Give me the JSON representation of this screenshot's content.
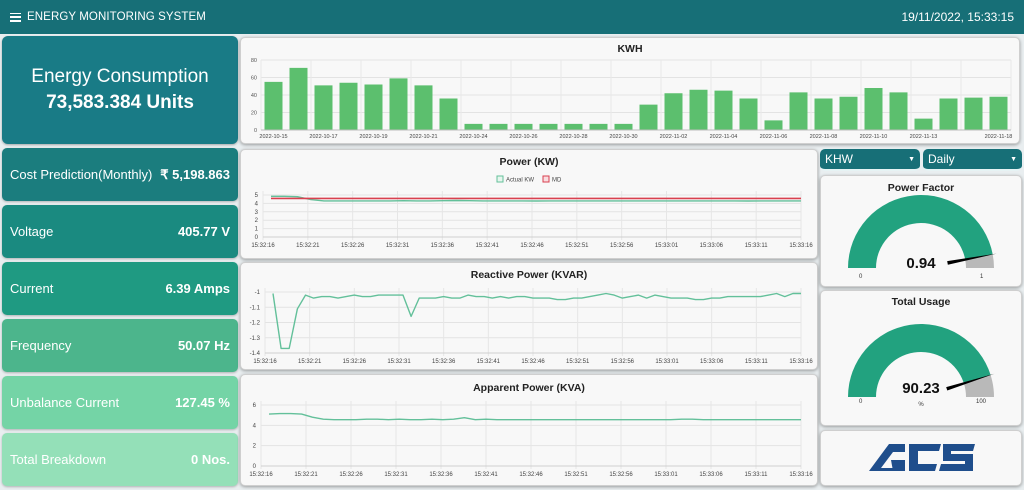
{
  "header": {
    "title": "ENERGY MONITORING SYSTEM",
    "datetime": "19/11/2022, 15:33:15"
  },
  "energy": {
    "title": "Energy Consumption",
    "value": "73,583.384 Units"
  },
  "stats": [
    {
      "label": "Cost Prediction(Monthly)",
      "value": "₹ 5,198.863",
      "color": "#1b7d7e"
    },
    {
      "label": "Voltage",
      "value": "405.77 V",
      "color": "#1a8a80"
    },
    {
      "label": "Current",
      "value": "6.39 Amps",
      "color": "#1f9a82"
    },
    {
      "label": "Frequency",
      "value": "50.07 Hz",
      "color": "#4cb58c"
    },
    {
      "label": "Unbalance Current",
      "value": "127.45 %",
      "color": "#74d4a6"
    },
    {
      "label": "Total Breakdown",
      "value": "0 Nos.",
      "color": "#94e0b8"
    }
  ],
  "controls": {
    "unit_select": "KHW",
    "period_select": "Daily"
  },
  "gauges": {
    "power_factor": {
      "title": "Power Factor",
      "value": "0.94",
      "min": "0",
      "max": "1",
      "fraction": 0.94,
      "unit": ""
    },
    "total_usage": {
      "title": "Total Usage",
      "value": "90.23",
      "min": "0",
      "max": "100",
      "fraction": 0.9023,
      "unit": "%"
    }
  },
  "logo": {
    "text": "ACS",
    "color": "#1f4e8c"
  },
  "chart_data": [
    {
      "type": "bar",
      "title": "KWH",
      "xlabel": "",
      "ylabel": "",
      "ylim": [
        0,
        80
      ],
      "yticks": [
        0,
        20,
        40,
        60,
        80
      ],
      "grid": true,
      "color": "#5cbf6e",
      "categories": [
        "2022-10-15",
        "2022-10-16",
        "2022-10-17",
        "2022-10-18",
        "2022-10-19",
        "2022-10-20",
        "2022-10-21",
        "2022-10-22",
        "2022-10-24",
        "2022-10-25",
        "2022-10-26",
        "2022-10-27",
        "2022-10-28",
        "2022-10-29",
        "2022-10-30",
        "2022-11-01",
        "2022-11-02",
        "2022-11-03",
        "2022-11-04",
        "2022-11-05",
        "2022-11-06",
        "2022-11-07",
        "2022-11-08",
        "2022-11-09",
        "2022-11-10",
        "2022-11-11",
        "2022-11-13",
        "2022-11-15",
        "2022-11-17",
        "2022-11-18"
      ],
      "tick_labels": [
        "2022-10-15",
        "2022-10-17",
        "2022-10-19",
        "2022-10-21",
        "2022-10-24",
        "2022-10-26",
        "2022-10-28",
        "2022-10-30",
        "2022-11-02",
        "2022-11-04",
        "2022-11-06",
        "2022-11-08",
        "2022-11-10",
        "2022-11-13",
        "2022-11-18"
      ],
      "values": [
        55,
        71,
        51,
        54,
        52,
        59,
        51,
        36,
        7,
        7,
        7,
        7,
        7,
        7,
        7,
        29,
        42,
        46,
        45,
        36,
        11,
        43,
        36,
        38,
        48,
        43,
        13,
        36,
        37,
        38
      ]
    },
    {
      "type": "line",
      "title": "Power (KW)",
      "legend": [
        "Actual KW",
        "MD"
      ],
      "legend_position": "top",
      "ylim": [
        0,
        5
      ],
      "yticks": [
        0,
        1,
        2,
        3,
        4,
        5
      ],
      "x": [
        "15:32:16",
        "15:32:21",
        "15:32:26",
        "15:32:31",
        "15:32:36",
        "15:32:41",
        "15:32:46",
        "15:32:51",
        "15:32:56",
        "15:33:01",
        "15:33:06",
        "15:33:11",
        "15:33:16"
      ],
      "series": [
        {
          "name": "Actual KW",
          "color": "#63c09a",
          "values": [
            4.85,
            4.85,
            4.8,
            4.45,
            4.3,
            4.3,
            4.3,
            4.3,
            4.3,
            4.3,
            4.32,
            4.3,
            4.3,
            4.32,
            4.35,
            4.32,
            4.3,
            4.3,
            4.3,
            4.3,
            4.28,
            4.3,
            4.3,
            4.3,
            4.3,
            4.3,
            4.3,
            4.3,
            4.3,
            4.3,
            4.3,
            4.3,
            4.3,
            4.3,
            4.3,
            4.3,
            4.28,
            4.3,
            4.3,
            4.3,
            4.3
          ]
        },
        {
          "name": "MD",
          "color": "#d9404f",
          "values": [
            4.6,
            4.6
          ]
        }
      ]
    },
    {
      "type": "line",
      "title": "Reactive Power (KVAR)",
      "ylim": [
        -1.4,
        -1.0
      ],
      "yticks": [
        -1,
        -1.1,
        -1.2,
        -1.3,
        -1.4
      ],
      "x": [
        "15:32:16",
        "15:32:21",
        "15:32:26",
        "15:32:31",
        "15:32:36",
        "15:32:41",
        "15:32:46",
        "15:32:51",
        "15:32:56",
        "15:33:01",
        "15:33:06",
        "15:33:11",
        "15:33:16"
      ],
      "series": [
        {
          "name": "KVAR",
          "color": "#63c09a",
          "values": [
            -1.01,
            -1.37,
            -1.37,
            -1.11,
            -1.02,
            -1.04,
            -1.03,
            -1.03,
            -1.04,
            -1.03,
            -1.02,
            -1.03,
            -1.03,
            -1.02,
            -1.02,
            -1.02,
            -1.02,
            -1.16,
            -1.04,
            -1.04,
            -1.04,
            -1.03,
            -1.04,
            -1.04,
            -1.02,
            -1.03,
            -1.03,
            -1.04,
            -1.03,
            -1.04,
            -1.03,
            -1.03,
            -1.04,
            -1.04,
            -1.04,
            -1.05,
            -1.05,
            -1.04,
            -1.04,
            -1.03,
            -1.02,
            -1.01,
            -1.02,
            -1.04,
            -1.03,
            -1.02,
            -1.04,
            -1.02,
            -1.03,
            -1.04,
            -1.04,
            -1.04,
            -1.05,
            -1.05,
            -1.04,
            -1.04,
            -1.03,
            -1.03,
            -1.03,
            -1.03,
            -1.03,
            -1.02,
            -1.01,
            -1.03,
            -1.01,
            -1.01
          ]
        }
      ]
    },
    {
      "type": "line",
      "title": "Apparent Power (KVA)",
      "ylim": [
        0,
        6
      ],
      "yticks": [
        0,
        2,
        4,
        6
      ],
      "x": [
        "15:32:16",
        "15:32:21",
        "15:32:26",
        "15:32:31",
        "15:32:36",
        "15:32:41",
        "15:32:46",
        "15:32:51",
        "15:32:56",
        "15:33:01",
        "15:33:06",
        "15:33:11",
        "15:33:16"
      ],
      "series": [
        {
          "name": "KVA",
          "color": "#63c09a",
          "values": [
            5.1,
            5.15,
            5.15,
            5.1,
            4.8,
            4.6,
            4.55,
            4.55,
            4.55,
            4.6,
            4.6,
            4.55,
            4.6,
            4.55,
            4.55,
            4.6,
            4.55,
            4.6,
            4.75,
            4.55,
            4.6,
            4.55,
            4.55,
            4.55,
            4.55,
            4.55,
            4.55,
            4.55,
            4.55,
            4.55,
            4.55,
            4.55,
            4.55,
            4.55,
            4.55,
            4.55,
            4.55,
            4.55,
            4.6,
            4.6,
            4.55,
            4.55,
            4.55,
            4.55,
            4.55,
            4.55,
            4.55,
            4.55,
            4.55,
            4.55
          ]
        }
      ]
    }
  ]
}
